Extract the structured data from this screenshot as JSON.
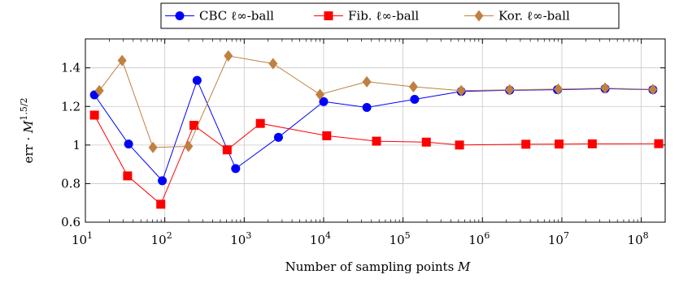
{
  "chart_data": {
    "type": "line",
    "title": "",
    "xlabel": "Number of sampling points M",
    "ylabel": "err · M^1.5/2",
    "x_scale": "log",
    "xlim": [
      10,
      200000000
    ],
    "ylim": [
      0.6,
      1.55
    ],
    "x_ticks": [
      {
        "value": 10,
        "base": "10",
        "exp": "1"
      },
      {
        "value": 100,
        "base": "10",
        "exp": "2"
      },
      {
        "value": 1000,
        "base": "10",
        "exp": "3"
      },
      {
        "value": 10000,
        "base": "10",
        "exp": "4"
      },
      {
        "value": 100000,
        "base": "10",
        "exp": "5"
      },
      {
        "value": 1000000,
        "base": "10",
        "exp": "6"
      },
      {
        "value": 10000000,
        "base": "10",
        "exp": "7"
      },
      {
        "value": 100000000,
        "base": "10",
        "exp": "8"
      }
    ],
    "y_ticks": [
      {
        "value": 0.6,
        "label": "0.6"
      },
      {
        "value": 0.8,
        "label": "0.8"
      },
      {
        "value": 1.0,
        "label": "1"
      },
      {
        "value": 1.2,
        "label": "1.2"
      },
      {
        "value": 1.4,
        "label": "1.4"
      }
    ],
    "grid": true,
    "legend_position": "top-center",
    "series": [
      {
        "name": "CBC ℓ∞-ball",
        "color": "#0000ff",
        "marker": "circle",
        "x": [
          13,
          35,
          93,
          255,
          780,
          2700,
          10000,
          35000,
          140000,
          540000,
          2200000,
          8800000,
          35000000,
          140000000
        ],
        "y": [
          1.26,
          1.005,
          0.815,
          1.335,
          0.878,
          1.04,
          1.225,
          1.195,
          1.237,
          1.278,
          1.284,
          1.287,
          1.292,
          1.287
        ]
      },
      {
        "name": "Fib. ℓ∞-ball",
        "color": "#ff0000",
        "marker": "square",
        "x": [
          13,
          34,
          89,
          233,
          610,
          1597,
          10946,
          46368,
          196418,
          514229,
          3524578,
          9227465,
          24157817,
          165580141
        ],
        "y": [
          1.155,
          0.84,
          0.693,
          1.102,
          0.975,
          1.112,
          1.048,
          1.02,
          1.015,
          1.0,
          1.004,
          1.005,
          1.006,
          1.007
        ]
      },
      {
        "name": "Kor. ℓ∞-ball",
        "color": "#bf8040",
        "marker": "diamond",
        "x": [
          15,
          29,
          71,
          199,
          631,
          2311,
          9001,
          35000,
          135000,
          540000,
          2200000,
          9000000,
          35000000,
          140000000
        ],
        "y": [
          1.282,
          1.438,
          0.987,
          0.993,
          1.462,
          1.422,
          1.262,
          1.328,
          1.302,
          1.282,
          1.286,
          1.29,
          1.295,
          1.288
        ]
      }
    ]
  }
}
